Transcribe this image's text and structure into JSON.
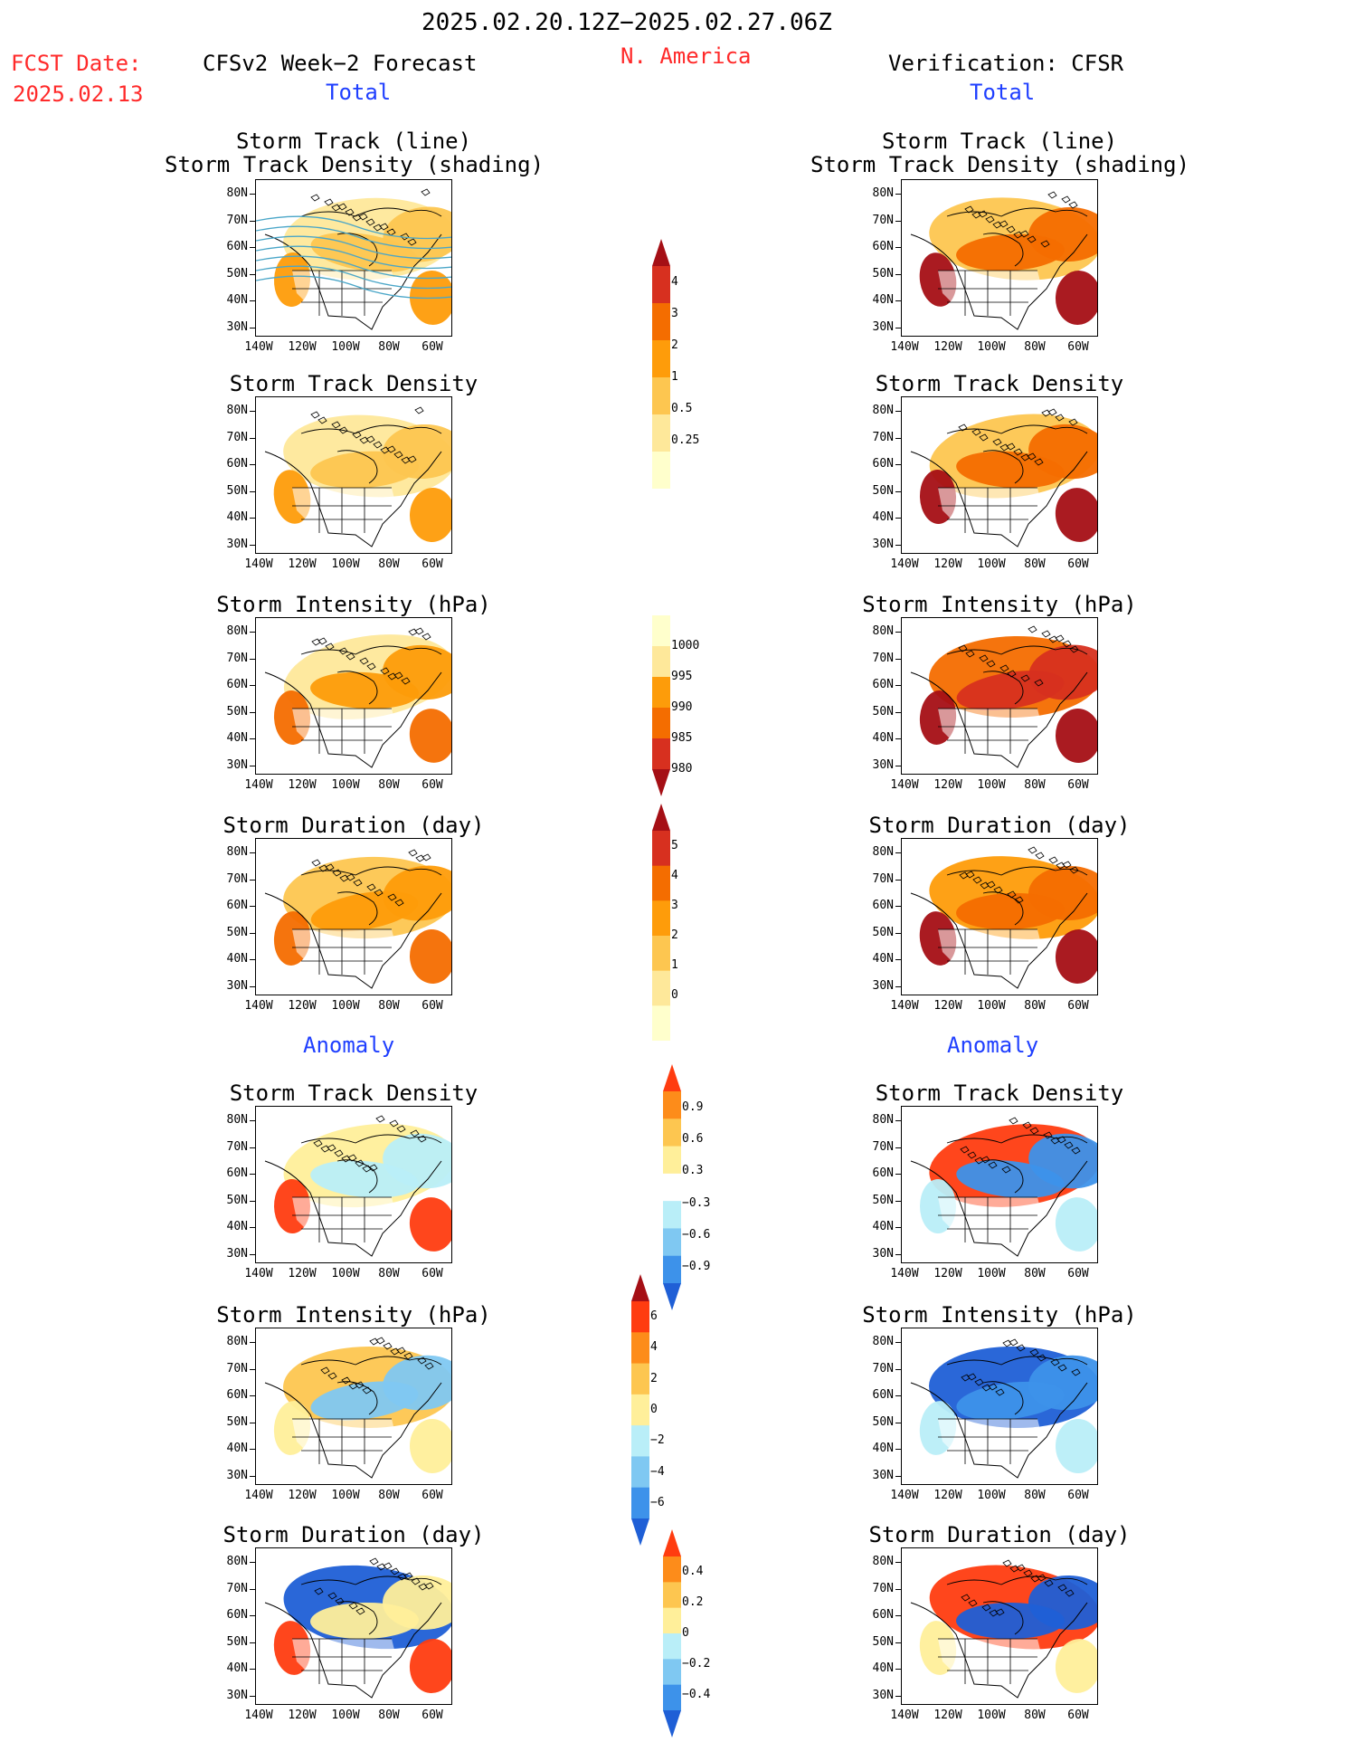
{
  "header": {
    "period": "2025.02.20.12Z−2025.02.27.06Z",
    "region": "N. America",
    "fcst_label": "FCST Date:",
    "fcst_date": "2025.02.13",
    "left_title": "CFSv2 Week−2 Forecast",
    "right_title": "Verification: CFSR",
    "total_left": "Total",
    "total_right": "Total",
    "anomaly_left": "Anomaly",
    "anomaly_right": "Anomaly"
  },
  "panels": {
    "total": [
      {
        "title1": "Storm Track (line)",
        "title2": "Storm Track Density (shading)"
      },
      {
        "title1": "Storm Track Density",
        "title2": ""
      },
      {
        "title1": "Storm Intensity (hPa)",
        "title2": ""
      },
      {
        "title1": "Storm Duration (day)",
        "title2": ""
      }
    ],
    "anomaly": [
      {
        "title1": "Storm Track Density",
        "title2": ""
      },
      {
        "title1": "Storm Intensity (hPa)",
        "title2": ""
      },
      {
        "title1": "Storm Duration (day)",
        "title2": ""
      }
    ]
  },
  "axes": {
    "lat": [
      "80N",
      "70N",
      "60N",
      "50N",
      "40N",
      "30N"
    ],
    "lon": [
      "140W",
      "120W",
      "100W",
      "80W",
      "60W"
    ]
  },
  "colorbars": [
    {
      "name": "density-total",
      "labels": [
        "4",
        "3",
        "2",
        "1",
        "0.5",
        "0.25"
      ],
      "colors": [
        "#a50f15",
        "#d7301f",
        "#f46d00",
        "#fe9c0a",
        "#fdc650",
        "#fee89a",
        "#ffffcc"
      ]
    },
    {
      "name": "intensity-total",
      "labels": [
        "1000",
        "995",
        "990",
        "985",
        "980"
      ],
      "colors": [
        "#ffffcc",
        "#fee89a",
        "#fd9c0a",
        "#f46d00",
        "#d7301f",
        "#a50f15"
      ]
    },
    {
      "name": "duration-total",
      "labels": [
        "5",
        "4",
        "3",
        "2",
        "1",
        "0"
      ],
      "colors": [
        "#a50f15",
        "#d7301f",
        "#f46d00",
        "#fe9c0a",
        "#fdc650",
        "#fee89a",
        "#ffffcc"
      ]
    },
    {
      "name": "density-anom",
      "labels": [
        "0.9",
        "0.6",
        "0.3",
        "−0.3",
        "−0.6",
        "−0.9"
      ],
      "colors": [
        "#ff3c10",
        "#fd8c1a",
        "#fdc650",
        "#ffef9a",
        "#ffffff",
        "#b9eef8",
        "#7fc8f2",
        "#3d92ea",
        "#1f5fd6"
      ]
    },
    {
      "name": "intensity-anom",
      "labels": [
        "6",
        "4",
        "2",
        "0",
        "−2",
        "−4",
        "−6"
      ],
      "colors": [
        "#a50f15",
        "#ff3c10",
        "#fd8c1a",
        "#fdc650",
        "#ffef9a",
        "#b9eef8",
        "#7fc8f2",
        "#3d92ea",
        "#1f5fd6"
      ]
    },
    {
      "name": "duration-anom",
      "labels": [
        "0.4",
        "0.2",
        "0",
        "−0.2",
        "−0.4"
      ],
      "colors": [
        "#ff3c10",
        "#fd8c1a",
        "#fdc650",
        "#ffef9a",
        "#b9eef8",
        "#7fc8f2",
        "#3d92ea",
        "#1f5fd6"
      ]
    }
  ],
  "colors": {
    "red": "#ff2a2a",
    "blue": "#1f3fff"
  }
}
